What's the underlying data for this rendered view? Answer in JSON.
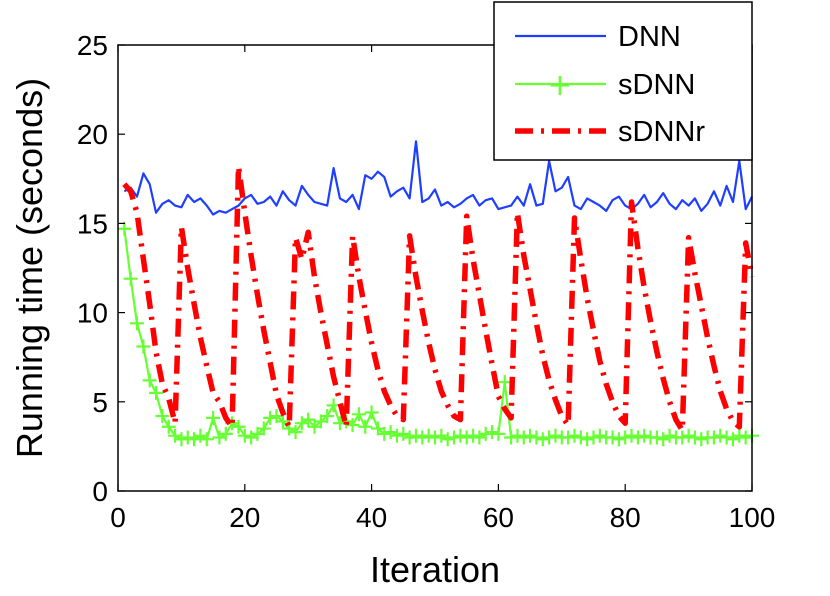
{
  "chart_data": {
    "type": "line",
    "title": "",
    "xlabel": "Iteration",
    "ylabel": "Running time (seconds)",
    "xlim": [
      0,
      100
    ],
    "ylim": [
      0,
      25
    ],
    "xticks": [
      0,
      20,
      40,
      60,
      80,
      100
    ],
    "yticks": [
      0,
      5,
      10,
      15,
      20,
      25
    ],
    "grid": false,
    "legend_position": "top-right",
    "series": [
      {
        "name": "DNN",
        "color": "#1f3fff",
        "style": "solid",
        "marker": "none",
        "x": [
          1,
          2,
          3,
          4,
          5,
          6,
          7,
          8,
          9,
          10,
          11,
          12,
          13,
          14,
          15,
          16,
          17,
          18,
          19,
          20,
          21,
          22,
          23,
          24,
          25,
          26,
          27,
          28,
          29,
          30,
          31,
          32,
          33,
          34,
          35,
          36,
          37,
          38,
          39,
          40,
          41,
          42,
          43,
          44,
          45,
          46,
          47,
          48,
          49,
          50,
          51,
          52,
          53,
          54,
          55,
          56,
          57,
          58,
          59,
          60,
          61,
          62,
          63,
          64,
          65,
          66,
          67,
          68,
          69,
          70,
          71,
          72,
          73,
          74,
          75,
          76,
          77,
          78,
          79,
          80,
          81,
          82,
          83,
          84,
          85,
          86,
          87,
          88,
          89,
          90,
          91,
          92,
          93,
          94,
          95,
          96,
          97,
          98,
          99,
          100
        ],
        "y": [
          16.8,
          17.0,
          16.5,
          17.8,
          17.2,
          15.6,
          16.1,
          16.3,
          16.0,
          15.9,
          16.6,
          16.2,
          16.4,
          16.0,
          15.5,
          15.7,
          15.6,
          15.8,
          16.0,
          16.4,
          16.6,
          16.1,
          16.2,
          16.5,
          16.0,
          16.8,
          16.3,
          16.0,
          17.1,
          16.6,
          16.2,
          16.1,
          16.0,
          18.1,
          16.4,
          16.2,
          16.6,
          15.8,
          17.7,
          17.5,
          17.9,
          17.6,
          16.5,
          16.8,
          17.0,
          16.4,
          19.6,
          16.2,
          16.4,
          16.9,
          16.0,
          16.2,
          15.9,
          16.1,
          16.4,
          16.6,
          16.0,
          16.3,
          16.4,
          15.8,
          15.9,
          16.0,
          16.5,
          16.0,
          17.2,
          16.0,
          16.1,
          18.5,
          16.8,
          17.0,
          17.6,
          16.0,
          15.8,
          16.4,
          16.2,
          16.0,
          15.7,
          16.3,
          16.5,
          16.0,
          15.8,
          16.1,
          16.6,
          15.9,
          16.2,
          16.7,
          16.1,
          15.8,
          16.3,
          16.0,
          16.4,
          15.7,
          16.1,
          16.8,
          16.0,
          17.1,
          16.2,
          18.5,
          15.8,
          16.5
        ]
      },
      {
        "name": "sDNN",
        "color": "#66ff33",
        "style": "solid",
        "marker": "plus",
        "x": [
          1,
          2,
          3,
          4,
          5,
          6,
          7,
          8,
          9,
          10,
          11,
          12,
          13,
          14,
          15,
          16,
          17,
          18,
          19,
          20,
          21,
          22,
          23,
          24,
          25,
          26,
          27,
          28,
          29,
          30,
          31,
          32,
          33,
          34,
          35,
          36,
          37,
          38,
          39,
          40,
          41,
          42,
          43,
          44,
          45,
          46,
          47,
          48,
          49,
          50,
          51,
          52,
          53,
          54,
          55,
          56,
          57,
          58,
          59,
          60,
          61,
          62,
          63,
          64,
          65,
          66,
          67,
          68,
          69,
          70,
          71,
          72,
          73,
          74,
          75,
          76,
          77,
          78,
          79,
          80,
          81,
          82,
          83,
          84,
          85,
          86,
          87,
          88,
          89,
          90,
          91,
          92,
          93,
          94,
          95,
          96,
          97,
          98,
          99,
          100
        ],
        "y": [
          14.7,
          11.9,
          9.4,
          8.1,
          6.2,
          5.5,
          4.2,
          3.6,
          3.1,
          2.9,
          3.0,
          2.9,
          3.1,
          2.9,
          4.1,
          3.0,
          3.2,
          3.8,
          3.6,
          3.1,
          3.0,
          3.2,
          3.5,
          4.1,
          4.2,
          3.9,
          3.5,
          3.3,
          3.8,
          4.0,
          3.6,
          3.9,
          4.2,
          4.8,
          3.8,
          3.9,
          3.7,
          4.3,
          3.6,
          4.4,
          3.5,
          3.2,
          3.3,
          3.1,
          3.2,
          3.0,
          3.1,
          3.0,
          3.1,
          3.0,
          3.1,
          2.9,
          3.0,
          3.1,
          3.0,
          3.1,
          3.0,
          3.2,
          3.3,
          3.2,
          6.1,
          3.0,
          3.1,
          3.0,
          3.1,
          3.0,
          2.9,
          3.0,
          3.1,
          3.0,
          3.0,
          3.1,
          3.0,
          2.9,
          3.0,
          3.1,
          3.0,
          3.0,
          2.9,
          3.0,
          3.1,
          3.0,
          3.1,
          3.0,
          3.0,
          2.9,
          3.1,
          3.0,
          3.0,
          3.1,
          3.0,
          2.9,
          3.0,
          3.0,
          3.1,
          3.0,
          2.9,
          3.1,
          3.0,
          3.1
        ]
      },
      {
        "name": "sDNNr",
        "color": "#ff0000",
        "style": "dashdot",
        "marker": "none",
        "x": [
          1,
          2,
          3,
          4,
          5,
          6,
          7,
          8,
          9,
          10,
          11,
          12,
          13,
          14,
          15,
          16,
          17,
          18,
          19,
          20,
          21,
          22,
          23,
          24,
          25,
          26,
          27,
          28,
          29,
          30,
          31,
          32,
          33,
          34,
          35,
          36,
          37,
          38,
          39,
          40,
          41,
          42,
          43,
          44,
          45,
          46,
          47,
          48,
          49,
          50,
          51,
          52,
          53,
          54,
          55,
          56,
          57,
          58,
          59,
          60,
          61,
          62,
          63,
          64,
          65,
          66,
          67,
          68,
          69,
          70,
          71,
          72,
          73,
          74,
          75,
          76,
          77,
          78,
          79,
          80,
          81,
          82,
          83,
          84,
          85,
          86,
          87,
          88,
          89,
          90,
          91,
          92,
          93,
          94,
          95,
          96,
          97,
          98,
          99,
          100
        ],
        "y": [
          17.2,
          16.8,
          15.6,
          13.0,
          10.5,
          7.8,
          6.0,
          5.2,
          3.8,
          14.8,
          12.5,
          10.5,
          8.6,
          7.0,
          5.5,
          5.0,
          4.1,
          3.6,
          18.2,
          15.6,
          13.2,
          11.0,
          9.0,
          7.2,
          5.4,
          4.4,
          3.6,
          14.2,
          13.0,
          14.5,
          12.0,
          10.0,
          8.2,
          6.4,
          5.0,
          3.6,
          14.3,
          12.0,
          10.1,
          8.3,
          6.8,
          5.6,
          4.8,
          4.2,
          4.0,
          14.3,
          12.0,
          10.1,
          8.3,
          6.8,
          5.6,
          4.8,
          4.2,
          4.0,
          15.4,
          13.0,
          11.0,
          9.0,
          7.1,
          5.3,
          4.6,
          4.1,
          15.6,
          13.2,
          11.3,
          9.4,
          7.6,
          6.2,
          5.1,
          4.2,
          3.7,
          15.3,
          13.0,
          10.8,
          9.0,
          7.3,
          6.0,
          5.0,
          4.2,
          3.8,
          16.2,
          13.6,
          11.4,
          9.5,
          7.8,
          6.3,
          5.0,
          4.0,
          3.4,
          14.2,
          12.2,
          10.4,
          8.6,
          7.0,
          5.6,
          4.6,
          3.9,
          3.6,
          13.9,
          12.0
        ]
      }
    ]
  }
}
